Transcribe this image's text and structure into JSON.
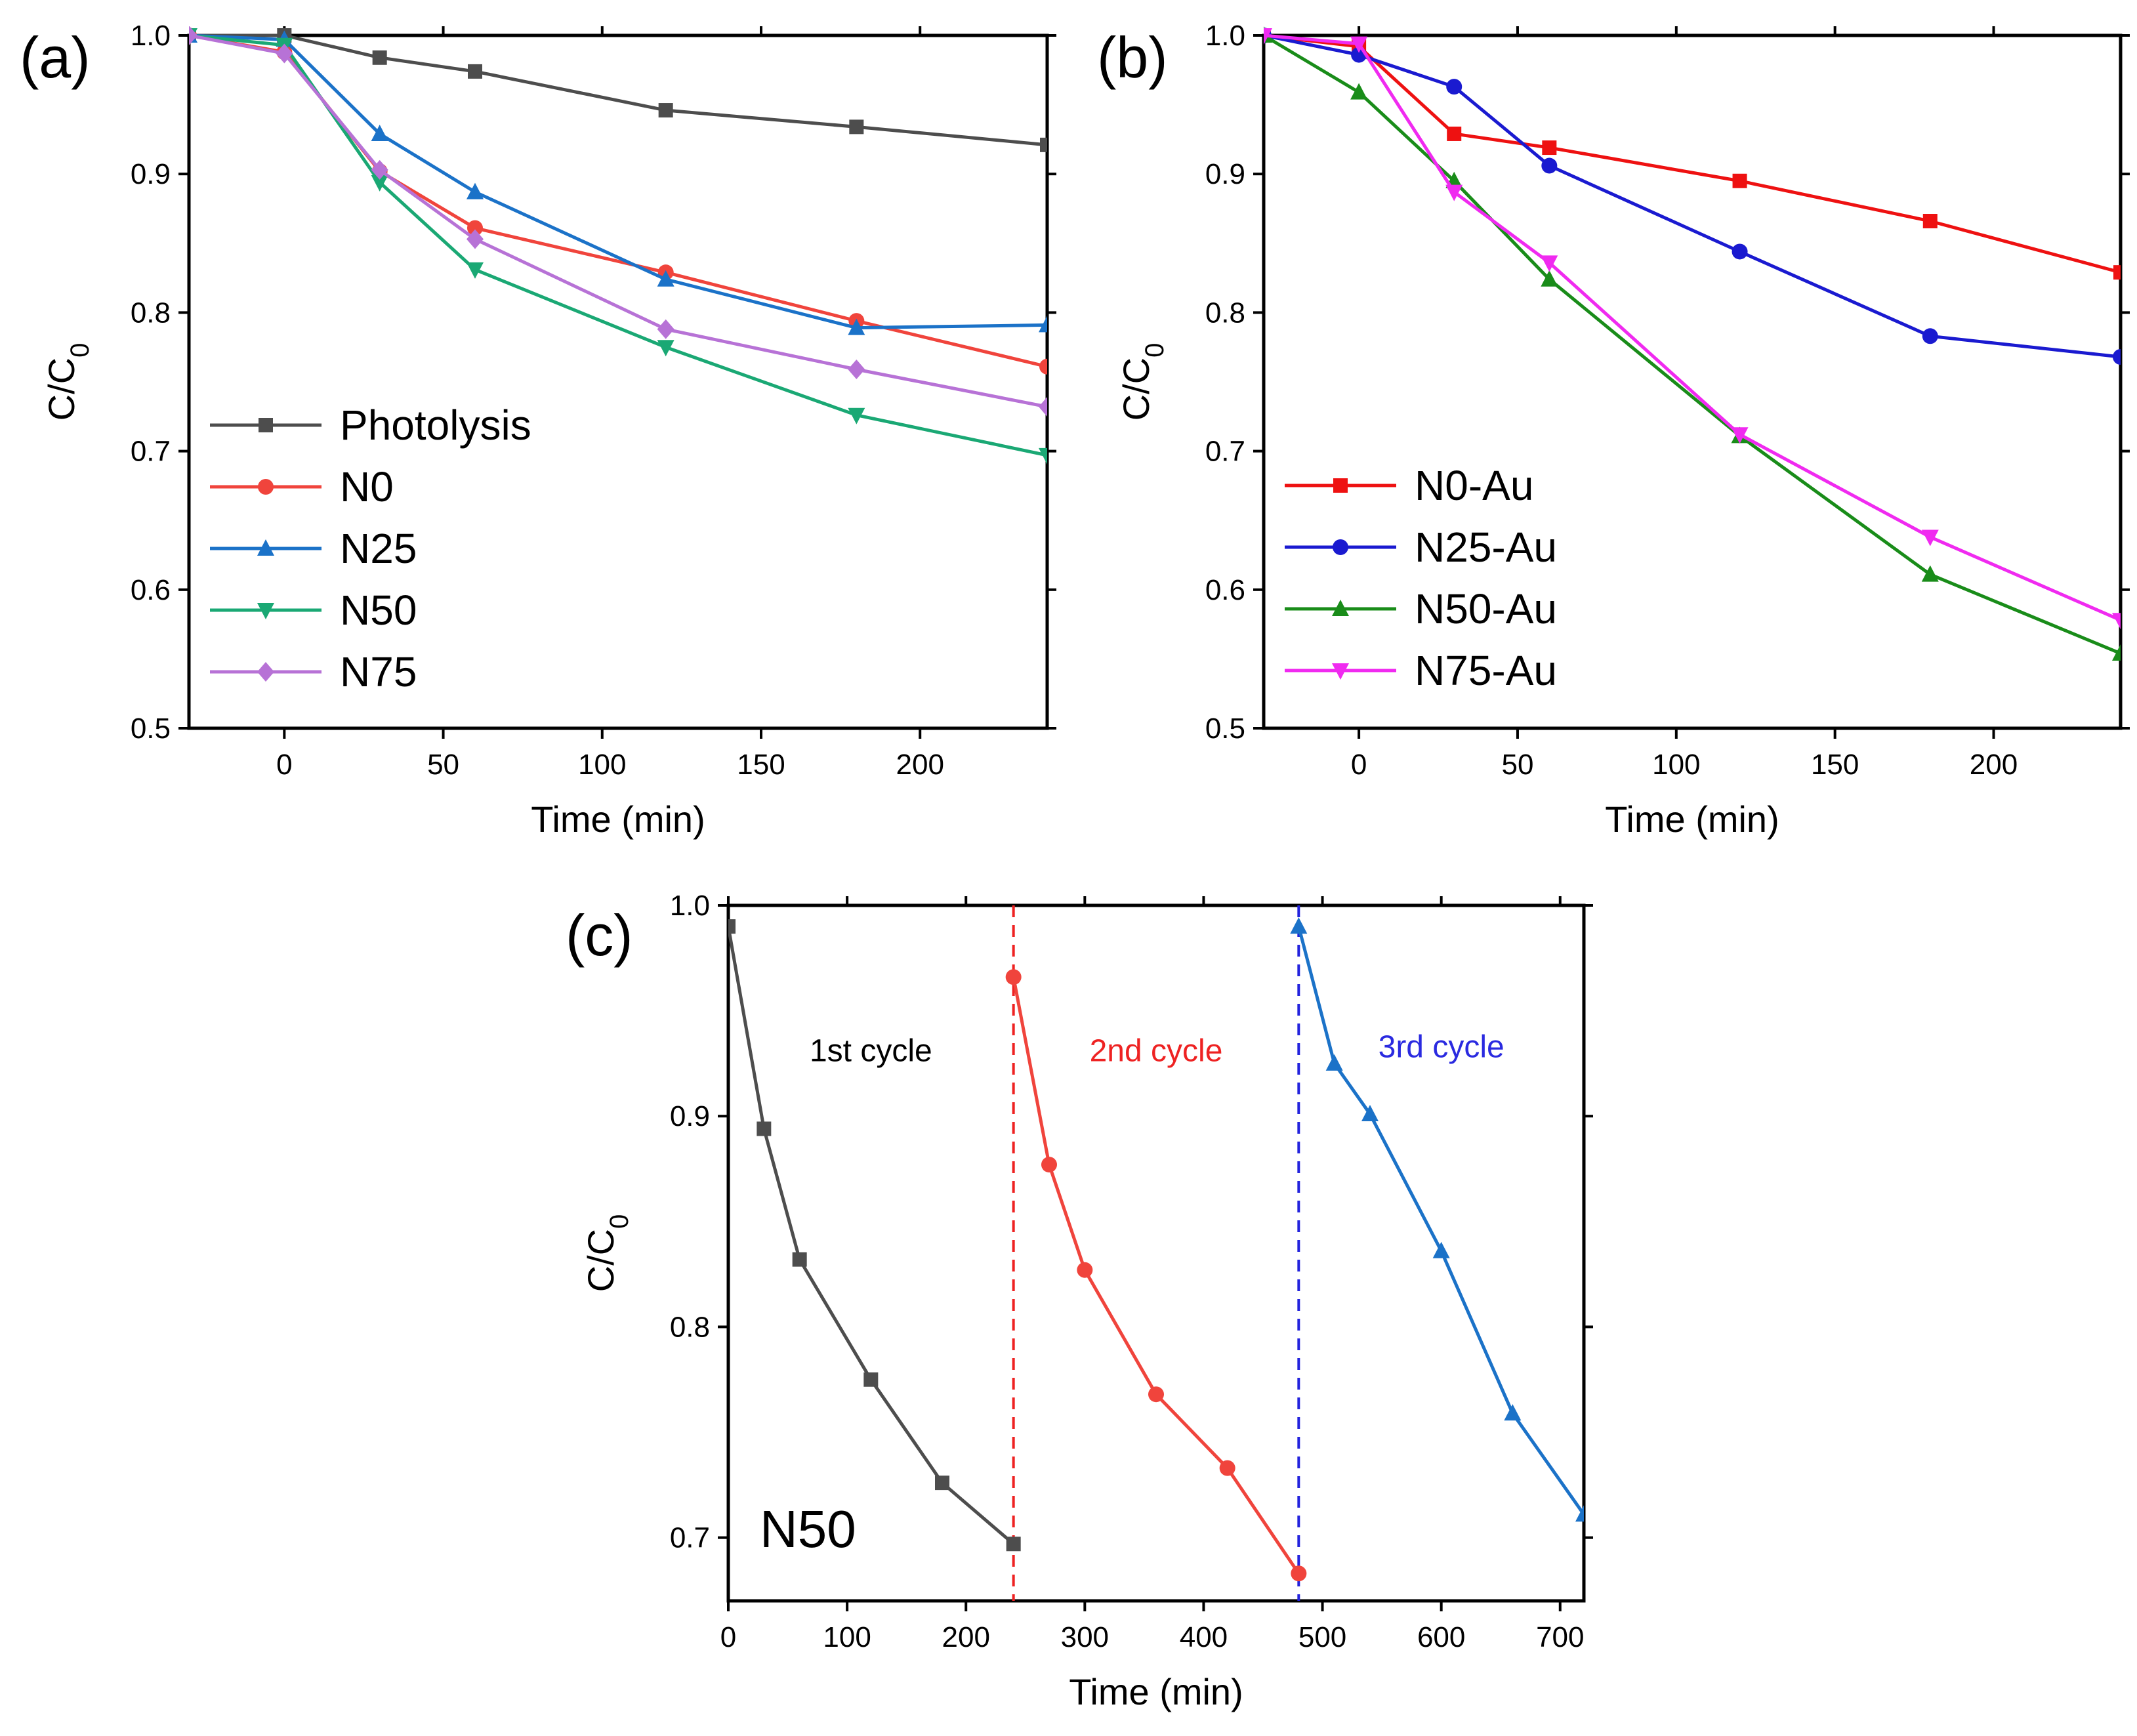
{
  "figure_title": "",
  "chart_data": [
    {
      "panel": "(a)",
      "type": "line",
      "xlabel": "Time (min)",
      "ylabel": "C/C0",
      "ylabel_main": "C/C",
      "ylabel_sub": "0",
      "xlim": [
        -30,
        240
      ],
      "ylim": [
        0.5,
        1.0
      ],
      "xticks": [
        0,
        50,
        100,
        150,
        200
      ],
      "yticks": [
        0.5,
        0.6,
        0.7,
        0.8,
        0.9,
        1.0
      ],
      "ytick_labels": [
        "0.5",
        "0.6",
        "0.7",
        "0.8",
        "0.9",
        "1.0"
      ],
      "legend_position": "left",
      "x": [
        -30,
        0,
        30,
        60,
        120,
        180,
        240
      ],
      "series": [
        {
          "name": "Photolysis",
          "color": "#4d4d4d",
          "marker": "square",
          "values": [
            1.0,
            1.0,
            0.984,
            0.974,
            0.946,
            0.934,
            0.921
          ]
        },
        {
          "name": "N0",
          "color": "#f0443c",
          "marker": "circle",
          "values": [
            1.0,
            0.988,
            0.902,
            0.861,
            0.829,
            0.794,
            0.761
          ]
        },
        {
          "name": "N25",
          "color": "#1b72c8",
          "marker": "triangle-up",
          "values": [
            1.0,
            0.997,
            0.929,
            0.887,
            0.824,
            0.789,
            0.791
          ]
        },
        {
          "name": "N50",
          "color": "#1aa874",
          "marker": "triangle-down",
          "values": [
            1.0,
            0.993,
            0.894,
            0.831,
            0.775,
            0.726,
            0.697
          ]
        },
        {
          "name": "N75",
          "color": "#b772d6",
          "marker": "diamond",
          "values": [
            1.0,
            0.987,
            0.903,
            0.853,
            0.788,
            0.759,
            0.732
          ]
        }
      ]
    },
    {
      "panel": "(b)",
      "type": "line",
      "xlabel": "Time (min)",
      "ylabel": "C/C0",
      "ylabel_main": "C/C",
      "ylabel_sub": "0",
      "xlim": [
        -30,
        240
      ],
      "ylim": [
        0.5,
        1.0
      ],
      "xticks": [
        0,
        50,
        100,
        150,
        200
      ],
      "yticks": [
        0.5,
        0.6,
        0.7,
        0.8,
        0.9,
        1.0
      ],
      "ytick_labels": [
        "0.5",
        "0.6",
        "0.7",
        "0.8",
        "0.9",
        "1.0"
      ],
      "legend_position": "bottom-left",
      "x": [
        -30,
        0,
        30,
        60,
        120,
        180,
        240
      ],
      "series": [
        {
          "name": "N0-Au",
          "color": "#ee1111",
          "marker": "square",
          "values": [
            1.0,
            0.992,
            0.929,
            0.919,
            0.895,
            0.866,
            0.829
          ]
        },
        {
          "name": "N25-Au",
          "color": "#1a1ad0",
          "marker": "circle",
          "values": [
            1.0,
            0.986,
            0.963,
            0.906,
            0.844,
            0.783,
            0.768
          ]
        },
        {
          "name": "N50-Au",
          "color": "#198c19",
          "marker": "triangle-up",
          "values": [
            1.0,
            0.959,
            0.895,
            0.824,
            0.711,
            0.611,
            0.554
          ]
        },
        {
          "name": "N75-Au",
          "color": "#f02af0",
          "marker": "triangle-down",
          "values": [
            1.0,
            0.994,
            0.887,
            0.836,
            0.712,
            0.638,
            0.578
          ]
        }
      ]
    },
    {
      "panel": "(c)",
      "type": "line",
      "sample_label": "N50",
      "xlabel": "Time (min)",
      "ylabel": "C/C0",
      "ylabel_main": "C/C",
      "ylabel_sub": "0",
      "xlim": [
        0,
        720
      ],
      "ylim": [
        0.67,
        1.0
      ],
      "xticks": [
        0,
        100,
        200,
        300,
        400,
        500,
        600,
        700
      ],
      "yticks": [
        0.7,
        0.8,
        0.9,
        1.0
      ],
      "ytick_labels": [
        "0.7",
        "0.8",
        "0.9",
        "1.0"
      ],
      "separators": [
        {
          "x": 240,
          "color": "#ee2222"
        },
        {
          "x": 480,
          "color": "#2222dd"
        }
      ],
      "annotations": [
        {
          "text": "1st cycle",
          "x": 120,
          "y": 0.926,
          "color": "#000000"
        },
        {
          "text": "2nd cycle",
          "x": 360,
          "y": 0.926,
          "color": "#ee2222"
        },
        {
          "text": "3rd cycle",
          "x": 600,
          "y": 0.928,
          "color": "#2a2ae0"
        }
      ],
      "series": [
        {
          "name": "1st cycle",
          "color": "#4d4d4d",
          "marker": "square",
          "x": [
            0,
            30,
            60,
            120,
            180,
            240
          ],
          "values": [
            0.99,
            0.894,
            0.832,
            0.775,
            0.726,
            0.697
          ]
        },
        {
          "name": "2nd cycle",
          "color": "#f0443c",
          "marker": "circle",
          "x": [
            240,
            270,
            300,
            360,
            420,
            480
          ],
          "values": [
            0.966,
            0.877,
            0.827,
            0.768,
            0.733,
            0.683
          ]
        },
        {
          "name": "3rd cycle",
          "color": "#1b72c8",
          "marker": "triangle-up",
          "x": [
            480,
            510,
            540,
            600,
            660,
            720
          ],
          "values": [
            0.99,
            0.925,
            0.901,
            0.836,
            0.759,
            0.711
          ]
        }
      ]
    }
  ]
}
